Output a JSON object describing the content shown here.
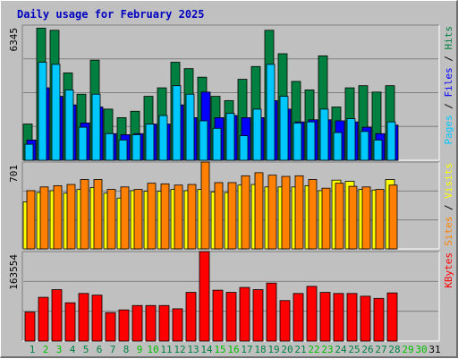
{
  "title": "Daily usage for February 2025",
  "chart_data": [
    {
      "type": "bar",
      "panel": "pages-files-hits",
      "max_label": "6345",
      "ylim": [
        0,
        6345
      ],
      "right_labels": [
        {
          "text": "Pages",
          "color": "#00c8ff"
        },
        {
          "text": " / ",
          "color": "#000000"
        },
        {
          "text": "Files",
          "color": "#0000ff"
        },
        {
          "text": " / ",
          "color": "#000000"
        },
        {
          "text": "Hits",
          "color": "#008040"
        }
      ],
      "categories": [
        "1",
        "2",
        "3",
        "4",
        "5",
        "6",
        "7",
        "8",
        "9",
        "10",
        "11",
        "12",
        "13",
        "14",
        "15",
        "16",
        "17",
        "18",
        "19",
        "20",
        "21",
        "22",
        "23",
        "24",
        "25",
        "26",
        "27",
        "28",
        "29",
        "30",
        "31"
      ],
      "series": [
        {
          "name": "Hits",
          "color": "#008040",
          "values": [
            1700,
            6200,
            6100,
            4100,
            3100,
            4700,
            2400,
            2000,
            2300,
            3000,
            3400,
            4600,
            4300,
            3900,
            3000,
            2800,
            3800,
            4400,
            6100,
            5000,
            3700,
            3300,
            4900,
            2500,
            3400,
            3500,
            3200,
            3500,
            null,
            null,
            null
          ]
        },
        {
          "name": "Files",
          "color": "#0000ff",
          "values": [
            950,
            3400,
            3000,
            2600,
            1750,
            2500,
            1250,
            1200,
            1250,
            1700,
            1700,
            2600,
            2000,
            3200,
            2000,
            2100,
            2000,
            2000,
            2800,
            2400,
            1800,
            1900,
            1900,
            1850,
            1800,
            1550,
            1250,
            1650,
            null,
            null,
            null
          ]
        },
        {
          "name": "Pages",
          "color": "#00c8ff",
          "values": [
            750,
            4600,
            4500,
            3300,
            1550,
            3100,
            1250,
            950,
            1200,
            1700,
            2100,
            3500,
            3100,
            1850,
            1500,
            2200,
            1150,
            2400,
            4500,
            3000,
            1750,
            1800,
            2400,
            1300,
            1950,
            1350,
            950,
            1800,
            null,
            null,
            null
          ]
        }
      ]
    },
    {
      "type": "bar",
      "panel": "sites-visits",
      "max_label": "701",
      "ylim": [
        0,
        701
      ],
      "right_labels": [
        {
          "text": "Sites",
          "color": "#ff8000"
        },
        {
          "text": " / ",
          "color": "#000000"
        },
        {
          "text": "Visits",
          "color": "#ffff00"
        }
      ],
      "categories": [
        "1",
        "2",
        "3",
        "4",
        "5",
        "6",
        "7",
        "8",
        "9",
        "10",
        "11",
        "12",
        "13",
        "14",
        "15",
        "16",
        "17",
        "18",
        "19",
        "20",
        "21",
        "22",
        "23",
        "24",
        "25",
        "26",
        "27",
        "28",
        "29",
        "30",
        "31"
      ],
      "series": [
        {
          "name": "Visits",
          "color": "#ffff00",
          "values": [
            380,
            455,
            470,
            450,
            480,
            495,
            450,
            410,
            470,
            465,
            465,
            480,
            470,
            480,
            460,
            455,
            515,
            520,
            500,
            500,
            500,
            510,
            470,
            555,
            545,
            480,
            475,
            560,
            null,
            null,
            null
          ]
        },
        {
          "name": "Sites",
          "color": "#ff8000",
          "values": [
            470,
            500,
            510,
            520,
            560,
            560,
            480,
            500,
            480,
            530,
            525,
            515,
            520,
            701,
            535,
            535,
            590,
            615,
            595,
            585,
            590,
            560,
            490,
            530,
            505,
            500,
            480,
            515,
            null,
            null,
            null
          ]
        }
      ]
    },
    {
      "type": "bar",
      "panel": "kbytes",
      "max_label": "163554",
      "ylim": [
        0,
        163554
      ],
      "right_labels": [
        {
          "text": "KBytes",
          "color": "#ff0000"
        }
      ],
      "categories": [
        "1",
        "2",
        "3",
        "4",
        "5",
        "6",
        "7",
        "8",
        "9",
        "10",
        "11",
        "12",
        "13",
        "14",
        "15",
        "16",
        "17",
        "18",
        "19",
        "20",
        "21",
        "22",
        "23",
        "24",
        "25",
        "26",
        "27",
        "28",
        "29",
        "30",
        "31"
      ],
      "series": [
        {
          "name": "KBytes",
          "color": "#ff0000",
          "values": [
            53000,
            80000,
            94000,
            70000,
            87000,
            84000,
            52000,
            57000,
            65000,
            65000,
            65000,
            59000,
            89000,
            163554,
            93000,
            89000,
            98000,
            94000,
            106000,
            74000,
            87000,
            100000,
            89000,
            87000,
            87000,
            82000,
            78000,
            88000,
            null,
            null,
            null
          ]
        }
      ]
    }
  ],
  "x_label_colors": {
    "weekday": "#008040",
    "weekend": "#00c000",
    "future": "#000000"
  },
  "x_label_kind": [
    "weekday",
    "weekend",
    "weekend",
    "weekday",
    "weekday",
    "weekday",
    "weekday",
    "weekday",
    "weekend",
    "weekend",
    "weekday",
    "weekday",
    "weekday",
    "weekday",
    "weekend",
    "weekend",
    "weekday",
    "weekday",
    "weekday",
    "weekday",
    "weekday",
    "weekend",
    "weekend",
    "weekday",
    "weekday",
    "weekday",
    "weekday",
    "weekday",
    "weekend",
    "weekend",
    "future"
  ]
}
